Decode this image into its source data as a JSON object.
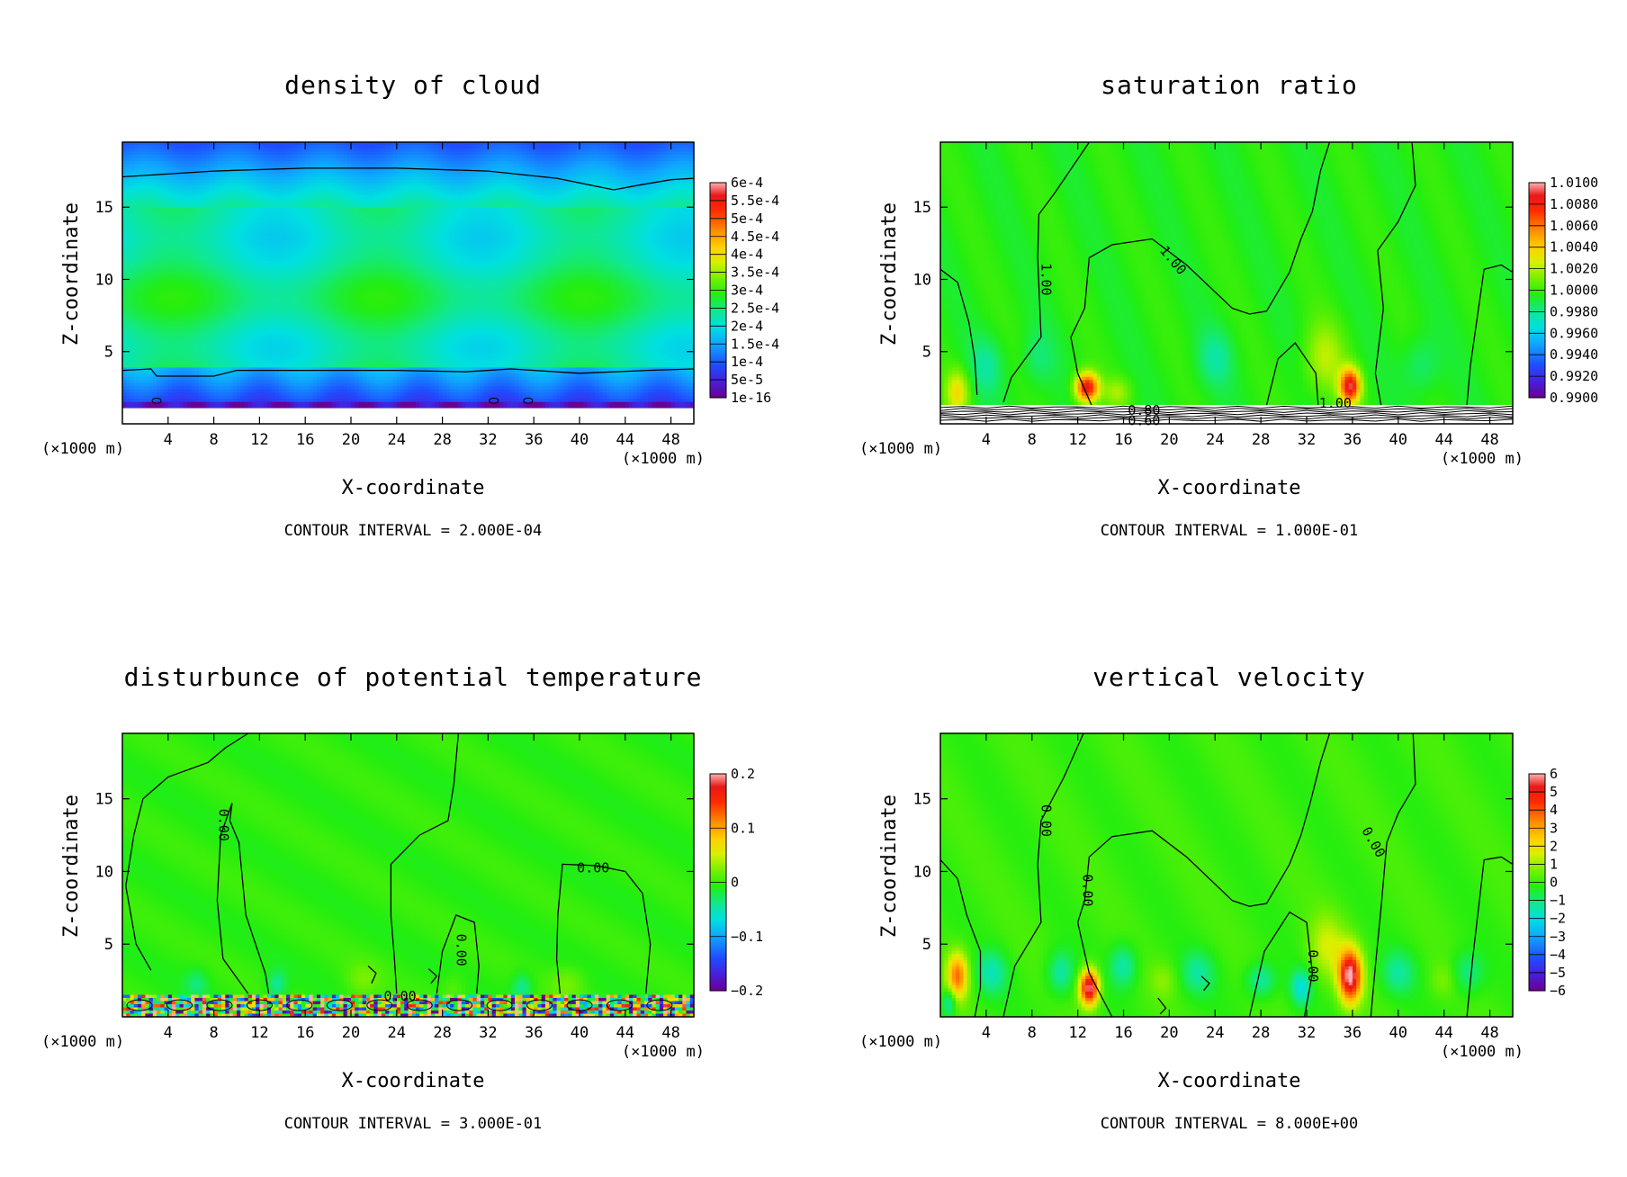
{
  "chart_data": [
    {
      "type": "heatmap",
      "title": "density of cloud",
      "xlabel": "X-coordinate",
      "ylabel": "Z-coordinate",
      "x_unit_left": "(×1000 m)",
      "x_unit_right": "(×1000 m)",
      "xlim": [
        0,
        50
      ],
      "ylim": [
        0,
        19.5
      ],
      "xticks": [
        4,
        8,
        12,
        16,
        20,
        24,
        28,
        32,
        36,
        40,
        44,
        48
      ],
      "yticks": [
        5,
        10,
        15
      ],
      "colorbar_labels": [
        "6e-4",
        "5.5e-4",
        "5e-4",
        "4.5e-4",
        "4e-4",
        "3.5e-4",
        "3e-4",
        "2.5e-4",
        "2e-4",
        "1.5e-4",
        "1e-4",
        "5e-5",
        "1e-16"
      ],
      "contour_interval": "CONTOUR INTERVAL = 2.000E-04",
      "contour_labels": [],
      "field": "cloud"
    },
    {
      "type": "heatmap",
      "title": "saturation ratio",
      "xlabel": "X-coordinate",
      "ylabel": "Z-coordinate",
      "x_unit_left": "(×1000 m)",
      "x_unit_right": "(×1000 m)",
      "xlim": [
        0,
        50
      ],
      "ylim": [
        0,
        19.5
      ],
      "xticks": [
        4,
        8,
        12,
        16,
        20,
        24,
        28,
        32,
        36,
        40,
        44,
        48
      ],
      "yticks": [
        5,
        10,
        15
      ],
      "colorbar_labels": [
        "1.0100",
        "1.0080",
        "1.0060",
        "1.0040",
        "1.0020",
        "1.0000",
        "0.9980",
        "0.9960",
        "0.9940",
        "0.9920",
        "0.9900"
      ],
      "contour_interval": "CONTOUR INTERVAL = 1.000E-01",
      "contour_labels": [
        {
          "text": "1.00",
          "x": 9.2,
          "z": 10.0,
          "rot": 90
        },
        {
          "text": "1.00",
          "x": 20.3,
          "z": 11.3,
          "rot": 50
        },
        {
          "text": "1.00",
          "x": 34.5,
          "z": 1.4,
          "rot": 0
        },
        {
          "text": "0.80",
          "x": 17.8,
          "z": 0.9,
          "rot": 0
        },
        {
          "text": "0.60",
          "x": 17.8,
          "z": 0.2,
          "rot": 0
        }
      ],
      "field": "sat"
    },
    {
      "type": "heatmap",
      "title": "disturbunce of potential temperature",
      "xlabel": "X-coordinate",
      "ylabel": "Z-coordinate",
      "x_unit_left": "(×1000 m)",
      "x_unit_right": "(×1000 m)",
      "xlim": [
        0,
        50
      ],
      "ylim": [
        0,
        19.5
      ],
      "xticks": [
        4,
        8,
        12,
        16,
        20,
        24,
        28,
        32,
        36,
        40,
        44,
        48
      ],
      "yticks": [
        5,
        10,
        15
      ],
      "colorbar_labels": [
        "0.2",
        "0.1",
        "0",
        "−0.1",
        "−0.2"
      ],
      "contour_interval": "CONTOUR INTERVAL = 3.000E-01",
      "contour_labels": [
        {
          "text": "0.00",
          "x": 8.8,
          "z": 13.2,
          "rot": 90
        },
        {
          "text": "0.00",
          "x": 29.6,
          "z": 4.6,
          "rot": 90
        },
        {
          "text": "0.00",
          "x": 41.2,
          "z": 10.2,
          "rot": 0
        },
        {
          "text": "0.00",
          "x": 24.3,
          "z": 1.4,
          "rot": 0
        }
      ],
      "field": "theta"
    },
    {
      "type": "heatmap",
      "title": "vertical velocity",
      "xlabel": "X-coordinate",
      "ylabel": "Z-coordinate",
      "x_unit_left": "(×1000 m)",
      "x_unit_right": "(×1000 m)",
      "xlim": [
        0,
        50
      ],
      "ylim": [
        0,
        19.5
      ],
      "xticks": [
        4,
        8,
        12,
        16,
        20,
        24,
        28,
        32,
        36,
        40,
        44,
        48
      ],
      "yticks": [
        5,
        10,
        15
      ],
      "colorbar_labels": [
        "6",
        "5",
        "4",
        "3",
        "2",
        "1",
        "0",
        "−1",
        "−2",
        "−3",
        "−4",
        "−5",
        "−6"
      ],
      "contour_interval": "CONTOUR INTERVAL = 8.000E+00",
      "contour_labels": [
        {
          "text": "0.00",
          "x": 9.2,
          "z": 13.5,
          "rot": 90
        },
        {
          "text": "0.00",
          "x": 12.8,
          "z": 8.7,
          "rot": 90
        },
        {
          "text": "0.00",
          "x": 32.5,
          "z": 3.5,
          "rot": 90
        },
        {
          "text": "0.00",
          "x": 37.8,
          "z": 12.0,
          "rot": 60
        }
      ],
      "field": "w"
    }
  ]
}
